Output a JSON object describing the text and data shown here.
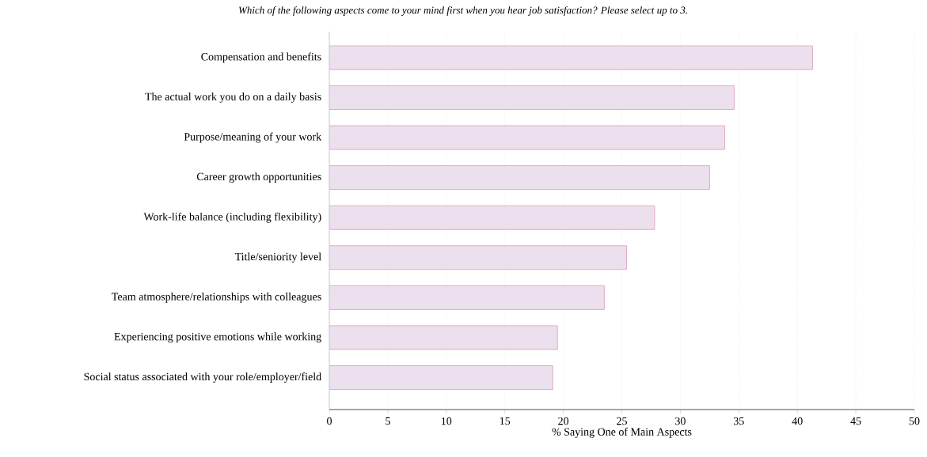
{
  "chart_data": {
    "type": "bar",
    "orientation": "horizontal",
    "title": "Which of the following aspects come to your mind first when you hear job satisfaction? Please select up to 3.",
    "xlabel": "% Saying One of Main Aspects",
    "categories": [
      "Compensation and benefits",
      "The actual work you do on a daily basis",
      "Purpose/meaning of your work",
      "Career growth opportunities",
      "Work-life balance (including flexibility)",
      "Title/seniority level",
      "Team atmosphere/relationships with colleagues",
      "Experiencing positive emotions while working",
      "Social status associated with your role/employer/field"
    ],
    "values": [
      41.3,
      34.6,
      33.8,
      32.5,
      27.8,
      25.4,
      23.5,
      19.5,
      19.1
    ],
    "color": "#ede0ee",
    "xlim": [
      0,
      50
    ],
    "xticks": [
      0,
      5,
      10,
      15,
      20,
      25,
      30,
      35,
      40,
      45,
      50
    ],
    "grid": "x"
  }
}
